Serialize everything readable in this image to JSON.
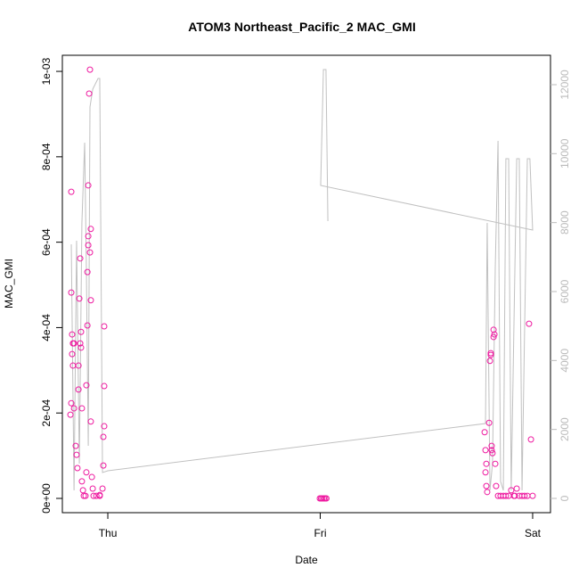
{
  "chart_data": {
    "type": "scatter",
    "title": "ATOM3 Northeast_Pacific_2 MAC_GMI",
    "x_label": "Date",
    "y_label": "MAC_GMI",
    "xlim": [
      -0.214,
      2.084
    ],
    "xticks": [
      {
        "value": 0,
        "label": "Thu"
      },
      {
        "value": 1,
        "label": "Fri"
      },
      {
        "value": 2,
        "label": "Sat"
      }
    ],
    "ylim": [
      -3.34e-05,
      0.0010377
    ],
    "yticks": [
      {
        "value": 0,
        "label": "0e+00"
      },
      {
        "value": 0.0002,
        "label": "2e-04"
      },
      {
        "value": 0.0004,
        "label": "4e-04"
      },
      {
        "value": 0.0006,
        "label": "6e-04"
      },
      {
        "value": 0.0008,
        "label": "8e-04"
      },
      {
        "value": 0.001,
        "label": "1e-03"
      }
    ],
    "y2lim": [
      -414,
      12853
    ],
    "y2ticks": [
      0,
      2000,
      4000,
      6000,
      8000,
      10000,
      12000
    ],
    "series": [
      {
        "type": "scatter",
        "color": "#ee1aa0",
        "x": [
          -0.172,
          -0.172,
          -0.168,
          -0.164,
          -0.159,
          -0.168,
          -0.164,
          -0.176,
          -0.172,
          -0.159,
          -0.151,
          -0.147,
          -0.143,
          -0.138,
          -0.138,
          -0.134,
          -0.13,
          -0.13,
          -0.126,
          -0.126,
          -0.122,
          -0.122,
          -0.117,
          -0.113,
          -0.105,
          -0.101,
          -0.101,
          -0.096,
          -0.096,
          -0.092,
          -0.092,
          -0.092,
          -0.088,
          -0.084,
          -0.084,
          -0.08,
          -0.08,
          -0.08,
          -0.075,
          -0.071,
          -0.067,
          -0.054,
          -0.038,
          -0.025,
          -0.021,
          -0.021,
          -0.017,
          -0.017,
          -0.017,
          -0.038,
          0.998,
          1.004,
          1.01,
          1.017,
          1.023,
          1.029,
          1.774,
          1.778,
          1.782,
          1.778,
          1.782,
          1.786,
          1.795,
          1.799,
          1.803,
          1.803,
          1.807,
          1.807,
          1.811,
          1.816,
          1.816,
          1.82,
          1.824,
          1.828,
          1.837,
          1.849,
          1.862,
          1.874,
          1.887,
          1.899,
          1.912,
          1.916,
          1.925,
          1.937,
          1.95,
          1.962,
          1.975,
          1.983,
          1.992,
          2.0
        ],
        "values": [
          0.000718,
          0.000482,
          0.000384,
          0.000363,
          0.000363,
          0.000338,
          0.000311,
          0.000196,
          0.000223,
          0.000211,
          0.000123,
          0.000102,
          7.1e-05,
          0.000255,
          0.000311,
          0.000468,
          0.000562,
          0.000363,
          0.000353,
          0.00039,
          0.000211,
          4e-05,
          1.9e-05,
          6e-06,
          6e-06,
          6.1e-05,
          0.000265,
          0.000405,
          0.00053,
          0.000593,
          0.000614,
          0.000733,
          0.000948,
          0.001004,
          0.000576,
          0.000631,
          0.000464,
          0.00018,
          5e-05,
          2.3e-05,
          6e-06,
          6e-06,
          6e-06,
          2.3e-05,
          7.7e-05,
          0.000144,
          0.000169,
          0.000263,
          0.000403,
          8e-06,
          0,
          0,
          0,
          0,
          0,
          0,
          0.000155,
          0.000113,
          8.1e-05,
          6.1e-05,
          2.9e-05,
          1.5e-05,
          0.000177,
          0.000322,
          0.000336,
          0.00034,
          0.000123,
          0.000113,
          0.000106,
          0.000395,
          0.000378,
          0.000384,
          8.1e-05,
          2.9e-05,
          6e-06,
          6e-06,
          6e-06,
          6e-06,
          6e-06,
          1.9e-05,
          6e-06,
          6e-06,
          2.3e-05,
          6e-06,
          6e-06,
          6e-06,
          6e-06,
          0.000409,
          0.000138,
          6e-06
        ]
      },
      {
        "type": "line",
        "axis": "y2",
        "color": "#c0c0c0",
        "x": [
          -0.172,
          -0.159,
          -0.147,
          -0.134,
          -0.122,
          -0.109,
          -0.101,
          -0.092,
          -0.084,
          -0.071,
          -0.046,
          -0.038,
          -0.025,
          0,
          1.778,
          1.786,
          1.799,
          1.811,
          1.824,
          1.837,
          1.849,
          1.862,
          1.874,
          1.887,
          1.899,
          1.925,
          1.937,
          1.95,
          1.975,
          1.987,
          2.0,
          1.002,
          1.015,
          1.027,
          1.036
        ],
        "values": [
          7370,
          233,
          7474,
          1009,
          7991,
          10318,
          6698,
          1526,
          11353,
          11870,
          12180,
          12180,
          750,
          802,
          2172,
          7991,
          233,
          1009,
          6698,
          10370,
          491,
          233,
          9853,
          9853,
          233,
          9853,
          9853,
          233,
          9853,
          9853,
          7784,
          9077,
          12439,
          12439,
          8043
        ]
      }
    ]
  }
}
